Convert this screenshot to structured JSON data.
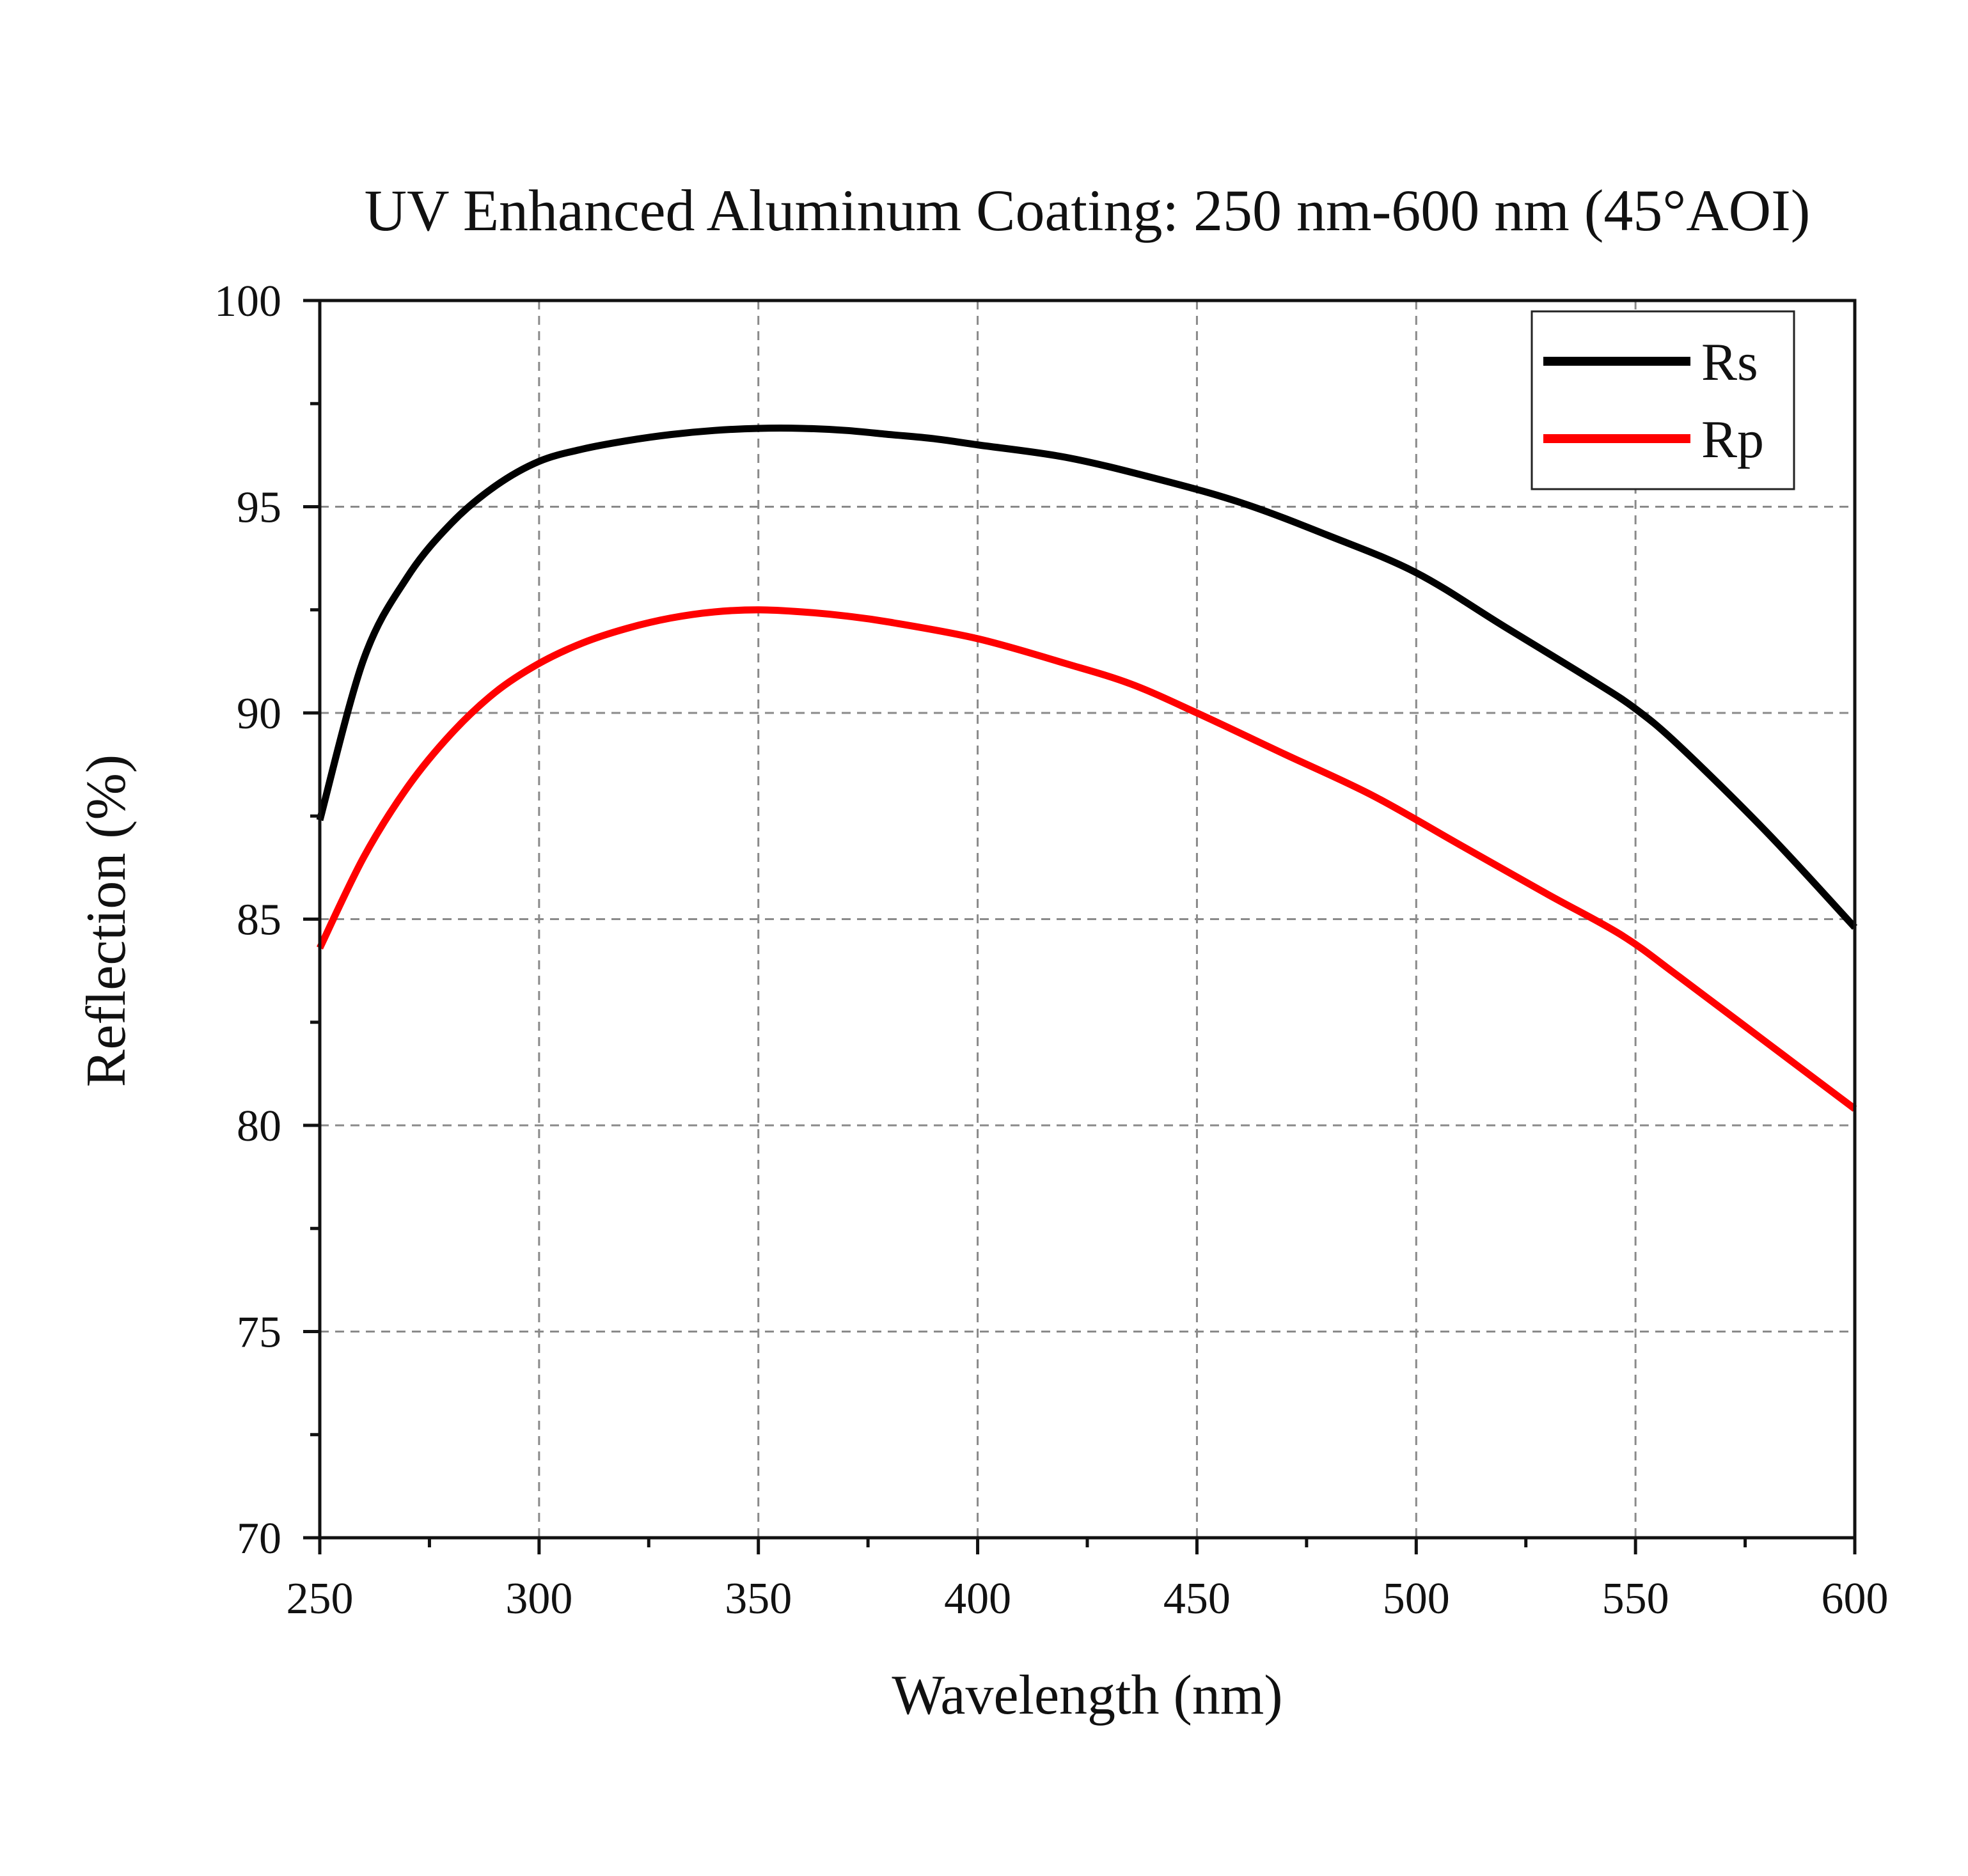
{
  "chart_data": {
    "type": "line",
    "title": "UV Enhanced Aluminum Coating: 250 nm-600 nm (45°AOI)",
    "xlabel": "Wavelength (nm)",
    "ylabel": "Reflection (%)",
    "xlim": [
      250,
      600
    ],
    "ylim": [
      70,
      100
    ],
    "xticks": [
      250,
      300,
      350,
      400,
      450,
      500,
      550,
      600
    ],
    "yticks": [
      70,
      75,
      80,
      85,
      90,
      95,
      100
    ],
    "grid": true,
    "legend_position": "top-right",
    "series": [
      {
        "name": "Rs",
        "color": "#000000",
        "x": [
          250,
          260,
          270,
          280,
          290,
          300,
          310,
          320,
          330,
          340,
          350,
          360,
          370,
          380,
          390,
          400,
          420,
          440,
          460,
          480,
          500,
          520,
          540,
          550,
          560,
          580,
          600
        ],
        "y": [
          87.4,
          91.3,
          93.3,
          94.6,
          95.5,
          96.1,
          96.4,
          96.6,
          96.75,
          96.85,
          96.9,
          96.9,
          96.85,
          96.75,
          96.65,
          96.5,
          96.2,
          95.7,
          95.1,
          94.3,
          93.4,
          92.1,
          90.8,
          90.1,
          89.2,
          87.1,
          84.8
        ]
      },
      {
        "name": "Rp",
        "color": "#ff0000",
        "x": [
          250,
          260,
          270,
          280,
          290,
          300,
          310,
          320,
          330,
          340,
          350,
          360,
          370,
          380,
          400,
          420,
          435,
          450,
          470,
          490,
          510,
          530,
          547,
          560,
          580,
          600
        ],
        "y": [
          84.3,
          86.5,
          88.2,
          89.5,
          90.5,
          91.2,
          91.7,
          92.05,
          92.3,
          92.45,
          92.5,
          92.45,
          92.35,
          92.2,
          91.8,
          91.2,
          90.7,
          90.0,
          89.0,
          88.0,
          86.8,
          85.6,
          84.6,
          83.6,
          82.0,
          80.4
        ]
      }
    ]
  }
}
